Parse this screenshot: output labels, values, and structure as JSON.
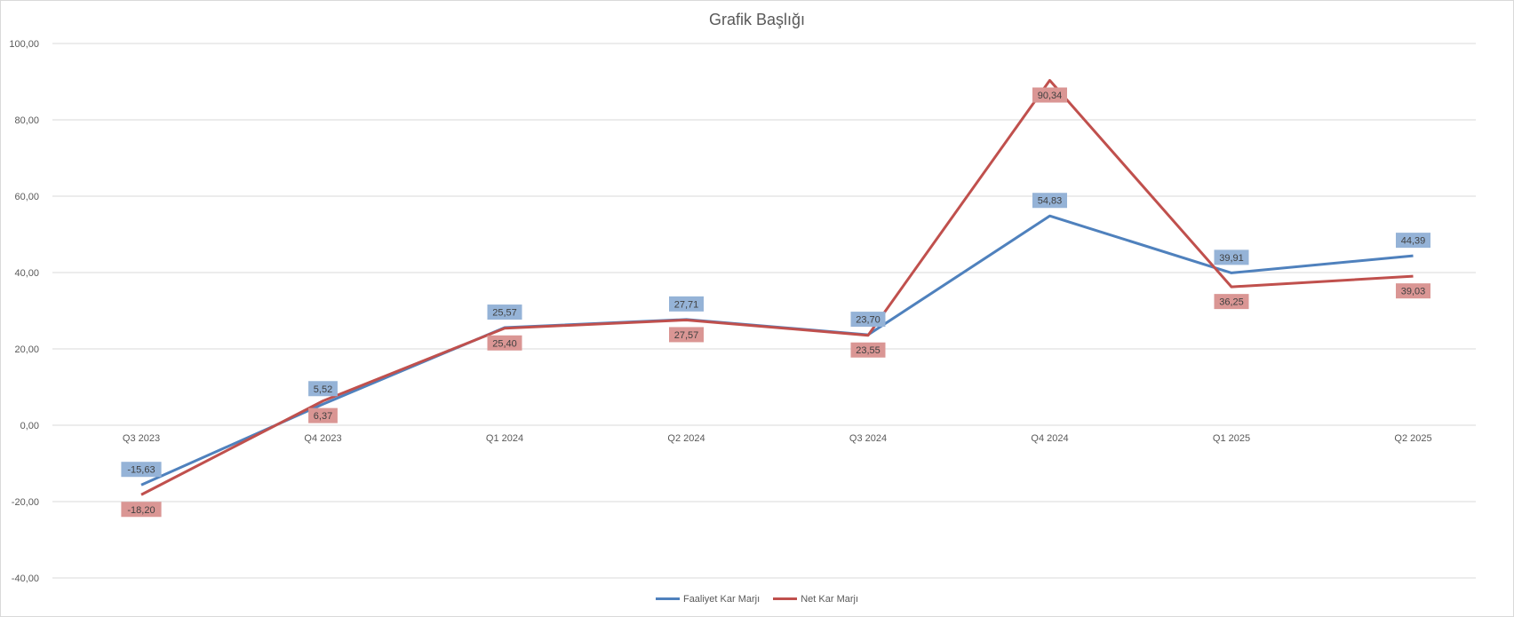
{
  "chart_data": {
    "type": "line",
    "title": "Grafik Başlığı",
    "categories": [
      "Q3 2023",
      "Q4 2023",
      "Q1 2024",
      "Q2 2024",
      "Q3 2024",
      "Q4 2024",
      "Q1 2025",
      "Q2 2025"
    ],
    "series": [
      {
        "name": "Faaliyet Kar Marjı",
        "color": "#4f81bd",
        "label_bg": "#95b3d7",
        "values": [
          -15.63,
          5.52,
          25.57,
          27.71,
          23.7,
          54.83,
          39.91,
          44.39
        ],
        "labels": [
          "-15,63",
          "5,52",
          "25,57",
          "27,71",
          "23,70",
          "54,83",
          "39,91",
          "44,39"
        ],
        "label_side": "above"
      },
      {
        "name": "Net Kar Marjı",
        "color": "#c0504d",
        "label_bg": "#da9694",
        "values": [
          -18.2,
          6.37,
          25.4,
          27.57,
          23.55,
          90.34,
          36.25,
          39.03
        ],
        "labels": [
          "-18,20",
          "6,37",
          "25,40",
          "27,57",
          "23,55",
          "90,34",
          "36,25",
          "39,03"
        ],
        "label_side": "below"
      }
    ],
    "ylim": [
      -40,
      100
    ],
    "ytick_values": [
      100,
      80,
      60,
      40,
      20,
      0,
      -20,
      -40
    ],
    "ytick_labels": [
      "100,00",
      "80,00",
      "60,00",
      "40,00",
      "20,00",
      "0,00",
      "-20,00",
      "-40,00"
    ],
    "grid": true,
    "legend_position": "bottom"
  }
}
